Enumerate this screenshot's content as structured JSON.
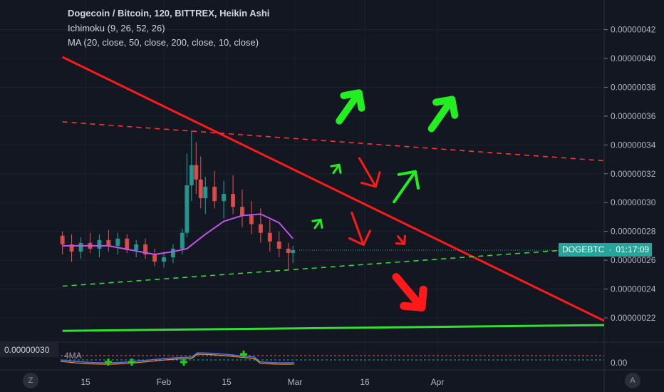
{
  "legend": {
    "title": "Dogecoin / Bitcoin, 120, BITTREX, Heikin Ashi",
    "ichimoku": "Ichimoku (9, 26, 52, 26)",
    "ma": "MA (20, close, 50, close, 200, close, 10, close)"
  },
  "price_tag": {
    "symbol": "DOGEBTC",
    "countdown": "01:17:09"
  },
  "oscillator": {
    "scale_value": "0.00000030",
    "label": "4MA",
    "right_tick": "0.00"
  },
  "corner_buttons": {
    "left": "Z",
    "right": "A"
  },
  "colors": {
    "background": "#131722",
    "up_candle": "#26a69a",
    "down_candle": "#ef5350",
    "resistance": "#ff1a1a",
    "support": "#33dd33",
    "arrow_up": "#22ee22",
    "arrow_down": "#ff1a1a",
    "ma_purple": "#c154e8"
  },
  "chart_data": {
    "type": "candlestick",
    "title": "Dogecoin / Bitcoin, 120, BITTREX, Heikin Ashi",
    "y_axis": {
      "ticks": [
        "0.00000042",
        "0.00000040",
        "0.00000038",
        "0.00000036",
        "0.00000034",
        "0.00000032",
        "0.00000030",
        "0.00000028",
        "0.00000026",
        "0.00000024",
        "0.00000022"
      ],
      "range": [
        2.08e-07,
        4.32e-07
      ]
    },
    "x_axis": {
      "ticks": [
        "15",
        "Feb",
        "15",
        "Mar",
        "16",
        "Apr"
      ]
    },
    "price_line": 2.67e-07,
    "candles": [
      {
        "date": "Jan 10",
        "o": 2.77e-07,
        "h": 2.8e-07,
        "l": 2.64e-07,
        "c": 2.71e-07
      },
      {
        "date": "Jan 12",
        "o": 2.71e-07,
        "h": 2.78e-07,
        "l": 2.59e-07,
        "c": 2.66e-07
      },
      {
        "date": "Jan 14",
        "o": 2.66e-07,
        "h": 2.76e-07,
        "l": 2.61e-07,
        "c": 2.72e-07
      },
      {
        "date": "Jan 16",
        "o": 2.72e-07,
        "h": 2.79e-07,
        "l": 2.65e-07,
        "c": 2.68e-07
      },
      {
        "date": "Jan 18",
        "o": 2.68e-07,
        "h": 2.78e-07,
        "l": 2.62e-07,
        "c": 2.74e-07
      },
      {
        "date": "Jan 20",
        "o": 2.74e-07,
        "h": 2.81e-07,
        "l": 2.66e-07,
        "c": 2.7e-07
      },
      {
        "date": "Jan 22",
        "o": 2.7e-07,
        "h": 2.79e-07,
        "l": 2.64e-07,
        "c": 2.75e-07
      },
      {
        "date": "Jan 24",
        "o": 2.75e-07,
        "h": 2.78e-07,
        "l": 2.65e-07,
        "c": 2.67e-07
      },
      {
        "date": "Jan 26",
        "o": 2.67e-07,
        "h": 2.74e-07,
        "l": 2.62e-07,
        "c": 2.71e-07
      },
      {
        "date": "Jan 28",
        "o": 2.71e-07,
        "h": 2.75e-07,
        "l": 2.61e-07,
        "c": 2.64e-07
      },
      {
        "date": "Jan 30",
        "o": 2.64e-07,
        "h": 2.68e-07,
        "l": 2.56e-07,
        "c": 2.59e-07
      },
      {
        "date": "Feb 1",
        "o": 2.59e-07,
        "h": 2.66e-07,
        "l": 2.55e-07,
        "c": 2.62e-07
      },
      {
        "date": "Feb 3",
        "o": 2.62e-07,
        "h": 2.71e-07,
        "l": 2.58e-07,
        "c": 2.68e-07
      },
      {
        "date": "Feb 5",
        "o": 2.68e-07,
        "h": 2.82e-07,
        "l": 2.64e-07,
        "c": 2.79e-07
      },
      {
        "date": "Feb 6",
        "o": 2.79e-07,
        "h": 3.34e-07,
        "l": 2.76e-07,
        "c": 3.12e-07
      },
      {
        "date": "Feb 7",
        "o": 3.12e-07,
        "h": 3.5e-07,
        "l": 3.01e-07,
        "c": 3.26e-07
      },
      {
        "date": "Feb 8",
        "o": 3.26e-07,
        "h": 3.42e-07,
        "l": 3.06e-07,
        "c": 3.16e-07
      },
      {
        "date": "Feb 9",
        "o": 3.16e-07,
        "h": 3.32e-07,
        "l": 2.96e-07,
        "c": 3.03e-07
      },
      {
        "date": "Feb 10",
        "o": 3.03e-07,
        "h": 3.18e-07,
        "l": 2.92e-07,
        "c": 3.11e-07
      },
      {
        "date": "Feb 12",
        "o": 3.11e-07,
        "h": 3.22e-07,
        "l": 2.96e-07,
        "c": 3.01e-07
      },
      {
        "date": "Feb 14",
        "o": 3.01e-07,
        "h": 3.15e-07,
        "l": 2.89e-07,
        "c": 3.06e-07
      },
      {
        "date": "Feb 16",
        "o": 3.06e-07,
        "h": 3.19e-07,
        "l": 2.92e-07,
        "c": 2.97e-07
      },
      {
        "date": "Feb 18",
        "o": 2.97e-07,
        "h": 3.09e-07,
        "l": 2.83e-07,
        "c": 2.91e-07
      },
      {
        "date": "Feb 20",
        "o": 2.91e-07,
        "h": 3.01e-07,
        "l": 2.78e-07,
        "c": 2.85e-07
      },
      {
        "date": "Feb 22",
        "o": 2.85e-07,
        "h": 2.96e-07,
        "l": 2.72e-07,
        "c": 2.79e-07
      },
      {
        "date": "Feb 24",
        "o": 2.79e-07,
        "h": 2.88e-07,
        "l": 2.66e-07,
        "c": 2.73e-07
      },
      {
        "date": "Feb 26",
        "o": 2.73e-07,
        "h": 2.8e-07,
        "l": 2.62e-07,
        "c": 2.68e-07
      },
      {
        "date": "Feb 28",
        "o": 2.68e-07,
        "h": 2.72e-07,
        "l": 2.53e-07,
        "c": 2.65e-07
      },
      {
        "date": "Mar 1",
        "o": 2.65e-07,
        "h": 2.7e-07,
        "l": 2.58e-07,
        "c": 2.67e-07
      }
    ],
    "ma_purple": [
      {
        "date": "Jan 10",
        "v": 2.7e-07
      },
      {
        "date": "Jan 20",
        "v": 2.7e-07
      },
      {
        "date": "Jan 30",
        "v": 2.64e-07
      },
      {
        "date": "Feb 3",
        "v": 2.66e-07
      },
      {
        "date": "Feb 6",
        "v": 2.68e-07
      },
      {
        "date": "Feb 10",
        "v": 2.78e-07
      },
      {
        "date": "Feb 14",
        "v": 2.87e-07
      },
      {
        "date": "Feb 18",
        "v": 2.91e-07
      },
      {
        "date": "Feb 22",
        "v": 2.92e-07
      },
      {
        "date": "Feb 26",
        "v": 2.86e-07
      },
      {
        "date": "Mar 1",
        "v": 2.75e-07
      }
    ],
    "annotations": [
      {
        "kind": "trendline",
        "style": "solid",
        "color": "#ff1a1a",
        "from": {
          "date": "Jan 10",
          "v": 4.01e-07
        },
        "to": {
          "date": "Apr 20",
          "v": 2.18e-07
        }
      },
      {
        "kind": "trendline",
        "style": "dashed",
        "color": "#ff3333",
        "from": {
          "date": "Jan 10",
          "v": 3.56e-07
        },
        "to": {
          "date": "Apr 20",
          "v": 3.29e-07
        }
      },
      {
        "kind": "trendline",
        "style": "dashed",
        "color": "#33dd33",
        "from": {
          "date": "Jan 10",
          "v": 2.42e-07
        },
        "to": {
          "date": "Apr 20",
          "v": 2.69e-07
        }
      },
      {
        "kind": "trendline",
        "style": "solid",
        "color": "#33dd33",
        "from": {
          "date": "Jan 10",
          "v": 2.11e-07
        },
        "to": {
          "date": "Apr 20",
          "v": 2.15e-07
        }
      }
    ]
  }
}
